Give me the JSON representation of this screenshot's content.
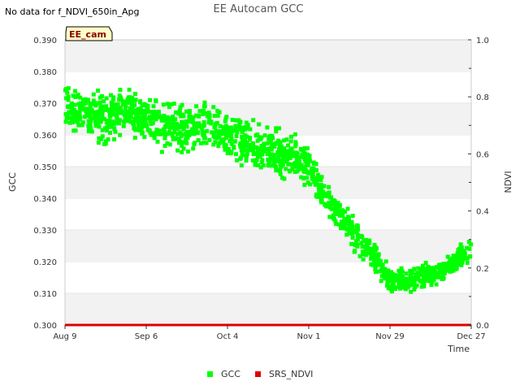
{
  "note": "No data for f_NDVI_650in_Apg",
  "chart_data": {
    "type": "scatter",
    "title": "EE Autocam GCC",
    "xlabel": "Time",
    "ylabel": "GCC",
    "y2label": "NDVI",
    "site_label": "EE_cam",
    "x_ticks": [
      "Aug 9",
      "Sep 6",
      "Oct 4",
      "Nov 1",
      "Nov 29",
      "Dec 27"
    ],
    "x_tick_days": [
      0,
      28,
      56,
      84,
      112,
      140
    ],
    "xlim_days": [
      0,
      140
    ],
    "ylim": [
      0.3,
      0.39
    ],
    "y_ticks": [
      "0.300",
      "0.310",
      "0.320",
      "0.330",
      "0.340",
      "0.350",
      "0.360",
      "0.370",
      "0.380",
      "0.390"
    ],
    "y2lim": [
      0.0,
      1.0
    ],
    "y2_ticks": [
      "0.0",
      "0.2",
      "0.4",
      "0.6",
      "0.8",
      "1.0"
    ],
    "grid": "horizontal bands",
    "legend_position": "bottom",
    "series": [
      {
        "name": "GCC",
        "color": "#00ff00",
        "trend_x_days": [
          0,
          5,
          10,
          15,
          20,
          25,
          30,
          35,
          40,
          45,
          50,
          55,
          60,
          65,
          70,
          75,
          80,
          85,
          88,
          92,
          96,
          100,
          104,
          108,
          112,
          116,
          120,
          125,
          130,
          135,
          140
        ],
        "trend_y": [
          0.37,
          0.367,
          0.366,
          0.365,
          0.368,
          0.366,
          0.364,
          0.362,
          0.362,
          0.363,
          0.362,
          0.36,
          0.358,
          0.356,
          0.355,
          0.354,
          0.353,
          0.348,
          0.342,
          0.338,
          0.334,
          0.328,
          0.324,
          0.32,
          0.314,
          0.314,
          0.315,
          0.316,
          0.317,
          0.32,
          0.324
        ],
        "spread_y": [
          0.01,
          0.01,
          0.011,
          0.011,
          0.01,
          0.01,
          0.01,
          0.01,
          0.011,
          0.011,
          0.01,
          0.01,
          0.01,
          0.01,
          0.009,
          0.009,
          0.009,
          0.008,
          0.007,
          0.007,
          0.007,
          0.007,
          0.006,
          0.006,
          0.005,
          0.005,
          0.005,
          0.005,
          0.005,
          0.005,
          0.006
        ]
      },
      {
        "name": "SRS_NDVI",
        "color": "#dd0000",
        "trend_x_days": [
          0,
          140
        ],
        "trend_y": [
          0.0,
          0.0
        ]
      }
    ]
  }
}
